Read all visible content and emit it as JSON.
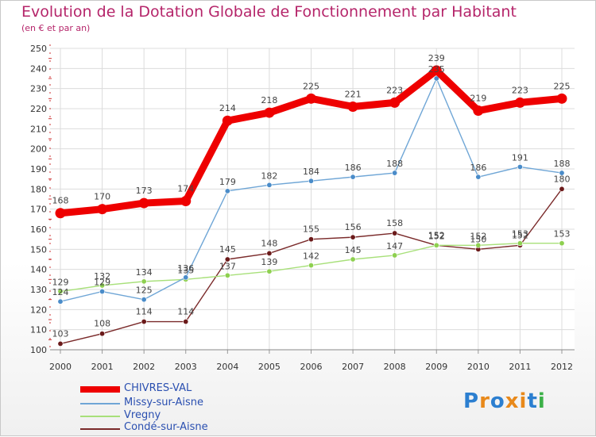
{
  "header": {
    "title": "Evolution de la Dotation Globale de Fonctionnement par Habitant",
    "subtitle": "(en € et par an)"
  },
  "logo": {
    "text": "Proxiti",
    "letters": [
      "P",
      "r",
      "o",
      "x",
      "i",
      "t",
      "i"
    ],
    "colors": [
      "#2c7fd0",
      "#e8891b",
      "#2c7fd0",
      "#e8891b",
      "#e8891b",
      "#2c7fd0",
      "#3cb048"
    ]
  },
  "chart_data": {
    "type": "line",
    "title": "Evolution de la Dotation Globale de Fonctionnement par Habitant",
    "subtitle": "(en € et par an)",
    "xlabel": "",
    "ylabel": "",
    "categories": [
      "2000",
      "2001",
      "2002",
      "2003",
      "2004",
      "2005",
      "2006",
      "2007",
      "2008",
      "2009",
      "2010",
      "2011",
      "2012"
    ],
    "ylim": [
      100,
      250
    ],
    "yticks": [
      "100",
      "110",
      "120",
      "130",
      "140",
      "150",
      "160",
      "170",
      "180",
      "190",
      "200",
      "210",
      "220",
      "230",
      "240",
      "250"
    ],
    "grid": true,
    "legend_position": "bottom-left",
    "series": [
      {
        "name": "CHIVRES-VAL",
        "color": "#ee0000",
        "marker": "#ee0000",
        "values": [
          168,
          170,
          173,
          174,
          214,
          218,
          225,
          221,
          223,
          239,
          219,
          223,
          225
        ],
        "labels": [
          "168",
          "170",
          "173",
          "174",
          "214",
          "218",
          "225",
          "221",
          "223",
          "239",
          "219",
          "223",
          "225"
        ]
      },
      {
        "name": "Missy-sur-Aisne",
        "color": "#6fa6d6",
        "marker": "#4a8cc9",
        "values": [
          124,
          129,
          125,
          136,
          179,
          182,
          184,
          186,
          188,
          235,
          186,
          191,
          188
        ],
        "labels": [
          "124",
          "129",
          "125",
          "136",
          "179",
          "182",
          "184",
          "186",
          "188",
          "235",
          "186",
          "191",
          "188"
        ]
      },
      {
        "name": "Vregny",
        "color": "#a8e07a",
        "marker": "#8ed050",
        "values": [
          129,
          132,
          134,
          135,
          137,
          139,
          142,
          145,
          147,
          152,
          152,
          153,
          153
        ],
        "labels": [
          "129",
          "132",
          "134",
          "135",
          "137",
          "139",
          "142",
          "145",
          "147",
          "152",
          "152",
          "153",
          "153"
        ]
      },
      {
        "name": "Condé-sur-Aisne",
        "color": "#7a2a2a",
        "marker": "#6b1a1a",
        "values": [
          103,
          108,
          114,
          114,
          145,
          148,
          155,
          156,
          158,
          152,
          150,
          152,
          180
        ],
        "labels": [
          "103",
          "108",
          "114",
          "114",
          "145",
          "148",
          "155",
          "156",
          "158",
          "152",
          "150",
          "152",
          "180"
        ]
      }
    ]
  }
}
